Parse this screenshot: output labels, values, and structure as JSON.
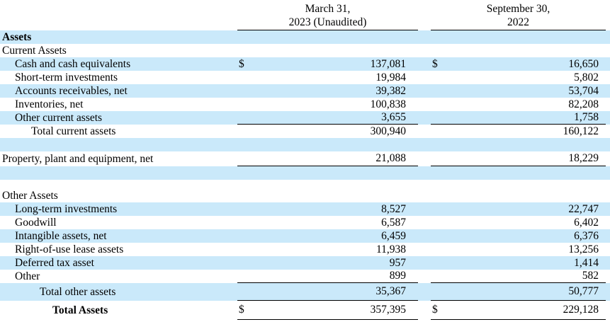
{
  "colors": {
    "stripe_blue": "#cae9fa",
    "rule_black": "#000000",
    "text": "#000000",
    "background": "#ffffff"
  },
  "header": {
    "col1": {
      "line1": "March 31,",
      "line2": "2023 (Unaudited)"
    },
    "col2": {
      "line1": "September 30,",
      "line2": "2022"
    }
  },
  "table": {
    "rows": [
      {
        "label": "Assets",
        "indent": 0,
        "bold": true,
        "bg": "blue",
        "dollar": false,
        "v1": "",
        "v2": "",
        "underline": false,
        "size": "normal"
      },
      {
        "label": "Current Assets",
        "indent": 0,
        "bold": false,
        "bg": "white",
        "dollar": false,
        "v1": "",
        "v2": "",
        "underline": false,
        "size": "normal"
      },
      {
        "label": "Cash and cash equivalents",
        "indent": 1,
        "bold": false,
        "bg": "blue",
        "dollar": true,
        "v1": "137,081",
        "v2": "16,650",
        "underline": false,
        "size": "normal"
      },
      {
        "label": "Short-term investments",
        "indent": 1,
        "bold": false,
        "bg": "white",
        "dollar": false,
        "v1": "19,984",
        "v2": "5,802",
        "underline": false,
        "size": "normal"
      },
      {
        "label": "Accounts receivables, net",
        "indent": 1,
        "bold": false,
        "bg": "blue",
        "dollar": false,
        "v1": "39,382",
        "v2": "53,704",
        "underline": false,
        "size": "normal"
      },
      {
        "label": "Inventories, net",
        "indent": 1,
        "bold": false,
        "bg": "white",
        "dollar": false,
        "v1": "100,838",
        "v2": "82,208",
        "underline": false,
        "size": "normal"
      },
      {
        "label": "Other current assets",
        "indent": 1,
        "bold": false,
        "bg": "blue",
        "dollar": false,
        "v1": "3,655",
        "v2": "1,758",
        "underline": true,
        "size": "normal"
      },
      {
        "label": "Total current assets",
        "indent": 2,
        "bold": false,
        "bg": "white",
        "dollar": false,
        "v1": "300,940",
        "v2": "160,122",
        "underline": false,
        "size": "normal"
      },
      {
        "label": "",
        "indent": 0,
        "bold": false,
        "bg": "blue",
        "dollar": false,
        "v1": "",
        "v2": "",
        "underline": false,
        "size": "normal"
      },
      {
        "label": "Property, plant and equipment, net",
        "indent": 0,
        "bold": false,
        "bg": "white",
        "dollar": false,
        "v1": "21,088",
        "v2": "18,229",
        "underline": true,
        "size": "property"
      },
      {
        "label": "",
        "indent": 0,
        "bold": false,
        "bg": "blue",
        "dollar": false,
        "v1": "",
        "v2": "",
        "underline": false,
        "size": "normal"
      },
      {
        "label": "",
        "indent": 0,
        "bold": false,
        "bg": "white",
        "dollar": false,
        "v1": "",
        "v2": "",
        "underline": false,
        "size": "spacer"
      },
      {
        "label": "Other Assets",
        "indent": 0,
        "bold": false,
        "bg": "white",
        "dollar": false,
        "v1": "",
        "v2": "",
        "underline": false,
        "size": "normal"
      },
      {
        "label": "Long-term investments",
        "indent": 1,
        "bold": false,
        "bg": "blue",
        "dollar": false,
        "v1": "8,527",
        "v2": "22,747",
        "underline": false,
        "size": "normal"
      },
      {
        "label": "Goodwill",
        "indent": 1,
        "bold": false,
        "bg": "white",
        "dollar": false,
        "v1": "6,587",
        "v2": "6,402",
        "underline": false,
        "size": "normal"
      },
      {
        "label": "Intangible assets, net",
        "indent": 1,
        "bold": false,
        "bg": "blue",
        "dollar": false,
        "v1": "6,459",
        "v2": "6,376",
        "underline": false,
        "size": "normal"
      },
      {
        "label": "Right-of-use lease assets",
        "indent": 1,
        "bold": false,
        "bg": "white",
        "dollar": false,
        "v1": "11,938",
        "v2": "13,256",
        "underline": false,
        "size": "normal"
      },
      {
        "label": "Deferred tax asset",
        "indent": 1,
        "bold": false,
        "bg": "blue",
        "dollar": false,
        "v1": "957",
        "v2": "1,414",
        "underline": false,
        "size": "normal"
      },
      {
        "label": "Other",
        "indent": 1,
        "bold": false,
        "bg": "white",
        "dollar": false,
        "v1": "899",
        "v2": "582",
        "underline": true,
        "size": "normal"
      },
      {
        "label": "Total other assets",
        "indent": 3,
        "bold": false,
        "bg": "blue",
        "dollar": false,
        "v1": "35,367",
        "v2": "50,777",
        "underline": true,
        "size": "total-other"
      },
      {
        "label": "Total Assets",
        "indent": 4,
        "bold": true,
        "bg": "white",
        "dollar": true,
        "v1": "357,395",
        "v2": "229,128",
        "underline": true,
        "size": "total-assets"
      }
    ]
  }
}
